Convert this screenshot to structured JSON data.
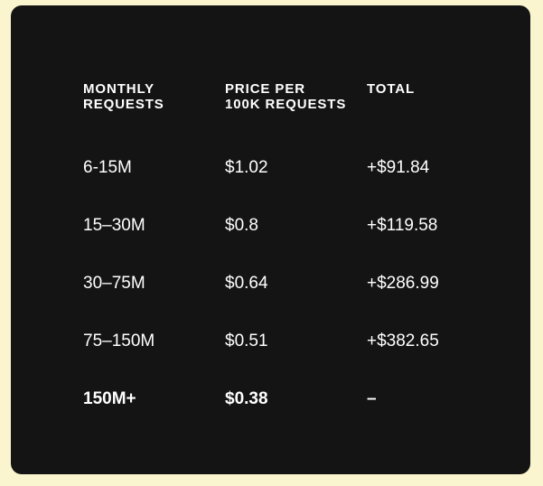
{
  "pricing_table": {
    "headers": [
      "MONTHLY\nREQUESTS",
      "PRICE PER\n100K REQUESTS",
      "TOTAL"
    ],
    "rows": [
      {
        "requests": "6-15M",
        "price": "$1.02",
        "total": "+$91.84"
      },
      {
        "requests": "15–30M",
        "price": "$0.8",
        "total": "+$119.58"
      },
      {
        "requests": "30–75M",
        "price": "$0.64",
        "total": "+$286.99"
      },
      {
        "requests": "75–150M",
        "price": "$0.51",
        "total": "+$382.65"
      },
      {
        "requests": "150M+",
        "price": "$0.38",
        "total": "–"
      }
    ]
  },
  "colors": {
    "page_background": "#fbf5cf",
    "card_background": "#141414",
    "text": "#ffffff"
  }
}
